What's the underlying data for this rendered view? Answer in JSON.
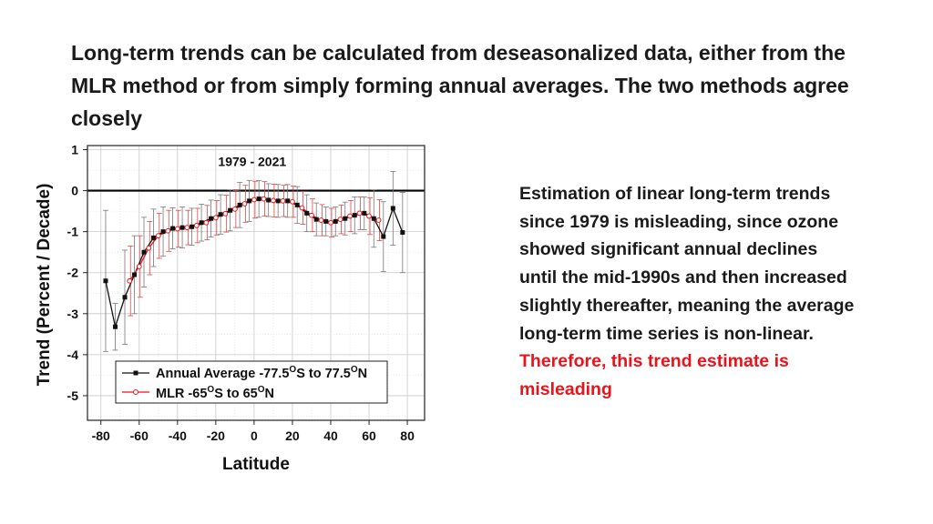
{
  "slide": {
    "title": "Long-term trends can be calculated from deseasonalized data, either from the MLR method or from simply forming annual averages. The two methods agree closely",
    "body_text": "Estimation of linear long-term trends since 1979 is misleading, since ozone showed significant annual declines until the mid-1990s and then increased slightly thereafter, meaning the average long-term time series is non-linear.",
    "body_highlight": "Therefore, this trend estimate is misleading",
    "highlight_color": "#e8141b"
  },
  "chart_data": {
    "type": "line",
    "annotation": "1979 - 2021",
    "xlabel": "Latitude",
    "ylabel": "Trend (Percent / Decade)",
    "xlim": [
      -87,
      89
    ],
    "ylim": [
      -5.6,
      1.1
    ],
    "xticks": [
      -80,
      -60,
      -40,
      -20,
      0,
      20,
      40,
      60,
      80
    ],
    "yticks": [
      1,
      0,
      -1,
      -2,
      -3,
      -4,
      -5
    ],
    "grid": true,
    "zero_line": true,
    "legend_position": "bottom-left",
    "series": [
      {
        "name": "Annual Average -77.5°S to 77.5°N",
        "legend_main": "Annual Average -77.5",
        "legend_sup1": "O",
        "legend_mid": "S to 77.5",
        "legend_sup2": "O",
        "legend_end": "N",
        "color": "#111111",
        "x": [
          -77.5,
          -72.5,
          -67.5,
          -62.5,
          -57.5,
          -52.5,
          -47.5,
          -42.5,
          -37.5,
          -32.5,
          -27.5,
          -22.5,
          -17.5,
          -12.5,
          -7.5,
          -2.5,
          2.5,
          7.5,
          12.5,
          17.5,
          22.5,
          27.5,
          32.5,
          37.5,
          42.5,
          47.5,
          52.5,
          57.5,
          62.5,
          67.5,
          72.5,
          77.5
        ],
        "y": [
          -2.2,
          -3.32,
          -2.6,
          -2.05,
          -1.5,
          -1.15,
          -1.0,
          -0.92,
          -0.9,
          -0.88,
          -0.78,
          -0.68,
          -0.58,
          -0.48,
          -0.35,
          -0.25,
          -0.2,
          -0.23,
          -0.25,
          -0.25,
          -0.35,
          -0.55,
          -0.7,
          -0.75,
          -0.75,
          -0.68,
          -0.6,
          -0.55,
          -0.68,
          -1.12,
          -0.43,
          -1.02
        ],
        "err": [
          1.72,
          0.57,
          1.15,
          0.95,
          0.85,
          0.7,
          0.6,
          0.5,
          0.5,
          0.45,
          0.45,
          0.45,
          0.48,
          0.5,
          0.55,
          0.5,
          0.45,
          0.4,
          0.4,
          0.4,
          0.45,
          0.45,
          0.4,
          0.35,
          0.35,
          0.4,
          0.45,
          0.4,
          0.7,
          0.85,
          0.9,
          0.98
        ]
      },
      {
        "name": "MLR -65°S to 65°N",
        "legend_main": "MLR -65",
        "legend_sup1": "O",
        "legend_mid": "S to 65",
        "legend_sup2": "O",
        "legend_end": "N",
        "color": "#e8141b",
        "x": [
          -65,
          -60,
          -55,
          -50,
          -45,
          -40,
          -35,
          -30,
          -25,
          -20,
          -15,
          -10,
          -5,
          0,
          5,
          10,
          15,
          20,
          25,
          30,
          35,
          40,
          45,
          50,
          55,
          60,
          65
        ],
        "y": [
          -2.2,
          -1.85,
          -1.4,
          -1.1,
          -0.98,
          -0.93,
          -0.9,
          -0.85,
          -0.78,
          -0.66,
          -0.56,
          -0.45,
          -0.32,
          -0.22,
          -0.2,
          -0.24,
          -0.25,
          -0.27,
          -0.42,
          -0.6,
          -0.72,
          -0.78,
          -0.7,
          -0.62,
          -0.55,
          -0.62,
          -0.72
        ],
        "err": [
          0.85,
          0.75,
          0.65,
          0.55,
          0.5,
          0.45,
          0.42,
          0.42,
          0.42,
          0.42,
          0.45,
          0.45,
          0.45,
          0.45,
          0.42,
          0.4,
          0.38,
          0.38,
          0.4,
          0.4,
          0.38,
          0.35,
          0.35,
          0.38,
          0.4,
          0.45,
          0.5
        ]
      }
    ]
  }
}
